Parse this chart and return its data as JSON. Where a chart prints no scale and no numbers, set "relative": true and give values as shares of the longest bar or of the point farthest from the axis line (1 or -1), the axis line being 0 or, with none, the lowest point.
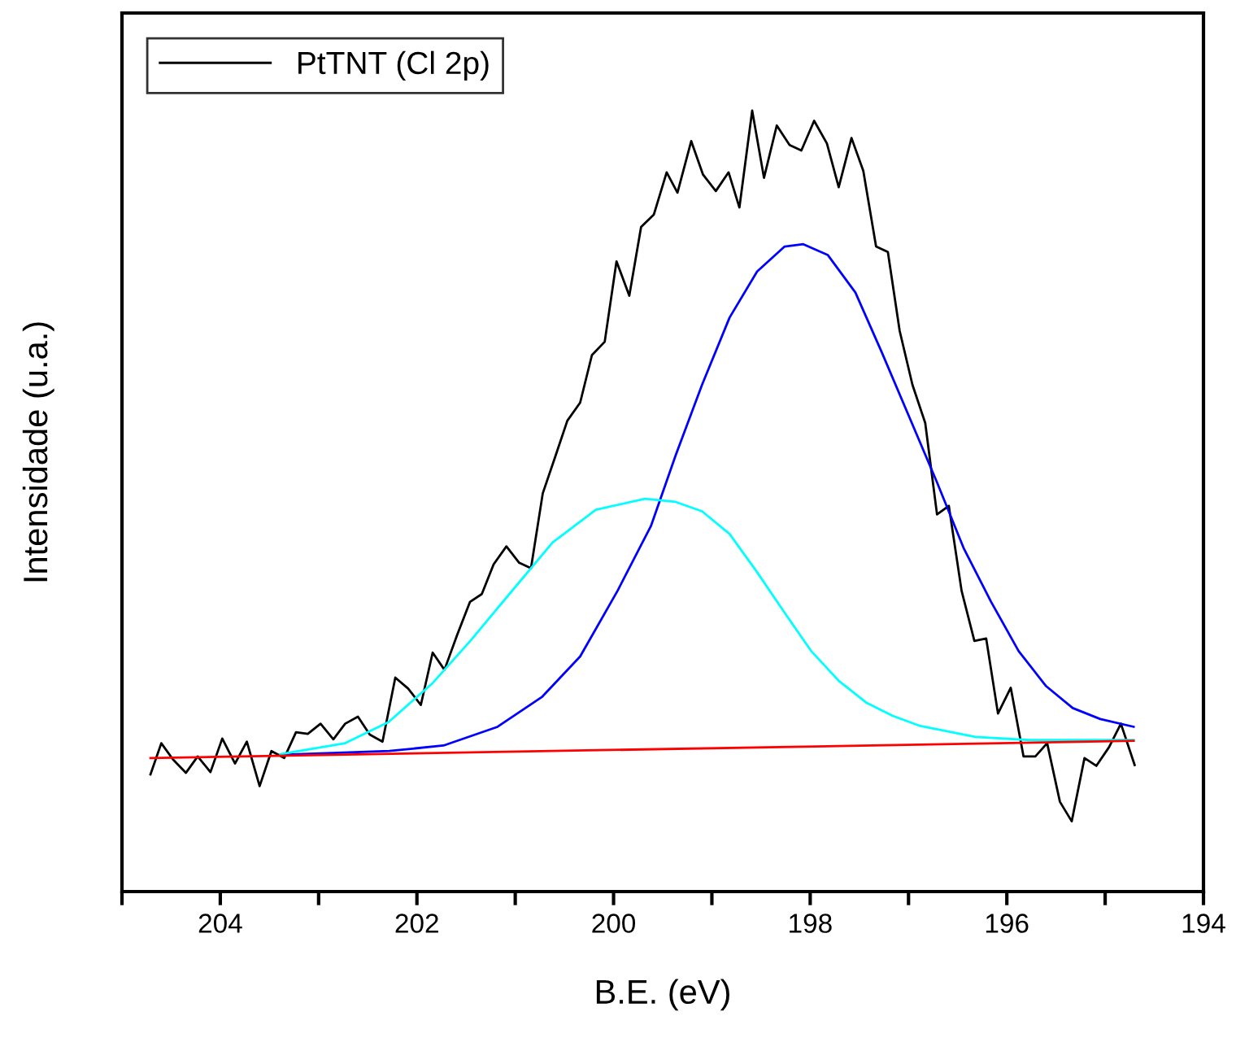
{
  "chart_data": {
    "type": "line",
    "relative": true,
    "xlabel": "B.E. (eV)",
    "ylabel": "Intensidade (u.a.)",
    "xlim": [
      205,
      194
    ],
    "xticks": [
      {
        "value": 205,
        "label": null
      },
      204,
      {
        "value": 203,
        "label": null
      },
      202,
      {
        "value": 201,
        "label": null
      },
      200,
      {
        "value": 199,
        "label": null
      },
      198,
      {
        "value": 197,
        "label": null
      },
      196,
      {
        "value": 195,
        "label": null
      },
      194
    ],
    "legend": "top left",
    "grid": false,
    "marker": "none",
    "line_style": "solid",
    "series": [
      {
        "name": "PtTNT (Cl 2p)",
        "color": "#000000",
        "x": [
          204.71,
          204.6,
          204.48,
          204.35,
          204.23,
          204.1,
          203.98,
          203.85,
          203.73,
          203.6,
          203.48,
          203.35,
          203.23,
          203.11,
          202.98,
          202.85,
          202.73,
          202.6,
          202.48,
          202.35,
          202.22,
          202.09,
          201.96,
          201.84,
          201.72,
          201.59,
          201.46,
          201.34,
          201.22,
          201.09,
          200.96,
          200.84,
          200.72,
          200.59,
          200.47,
          200.34,
          200.22,
          200.09,
          199.97,
          199.84,
          199.72,
          199.59,
          199.46,
          199.35,
          199.21,
          199.09,
          198.96,
          198.83,
          198.72,
          198.59,
          198.47,
          198.34,
          198.21,
          198.09,
          197.96,
          197.83,
          197.71,
          197.58,
          197.46,
          197.33,
          197.21,
          197.09,
          196.96,
          196.83,
          196.71,
          196.59,
          196.46,
          196.33,
          196.21,
          196.09,
          195.96,
          195.83,
          195.71,
          195.59,
          195.46,
          195.34,
          195.21,
          195.09,
          194.96,
          194.84,
          194.7
        ],
        "values": [
          0.15,
          0.19,
          0.169,
          0.152,
          0.173,
          0.153,
          0.196,
          0.164,
          0.192,
          0.135,
          0.18,
          0.171,
          0.204,
          0.202,
          0.215,
          0.195,
          0.215,
          0.224,
          0.201,
          0.192,
          0.274,
          0.26,
          0.239,
          0.306,
          0.284,
          0.329,
          0.371,
          0.381,
          0.419,
          0.442,
          0.421,
          0.414,
          0.51,
          0.558,
          0.603,
          0.626,
          0.687,
          0.704,
          0.807,
          0.763,
          0.851,
          0.867,
          0.921,
          0.895,
          0.961,
          0.918,
          0.897,
          0.921,
          0.876,
          1.0,
          0.914,
          0.981,
          0.956,
          0.949,
          0.987,
          0.958,
          0.902,
          0.965,
          0.923,
          0.826,
          0.819,
          0.718,
          0.649,
          0.6,
          0.483,
          0.494,
          0.385,
          0.321,
          0.324,
          0.228,
          0.261,
          0.173,
          0.173,
          0.19,
          0.115,
          0.09,
          0.171,
          0.161,
          0.185,
          0.215,
          0.162
        ]
      },
      {
        "color": "#0000ff",
        "x": [
          203.39,
          202.28,
          201.73,
          201.18,
          200.73,
          200.34,
          199.96,
          199.62,
          199.37,
          199.1,
          198.82,
          198.54,
          198.26,
          198.07,
          197.82,
          197.54,
          197.27,
          196.99,
          196.71,
          196.44,
          196.16,
          195.88,
          195.6,
          195.33,
          195.05,
          194.71
        ],
        "values": [
          0.175,
          0.18,
          0.187,
          0.211,
          0.249,
          0.301,
          0.385,
          0.468,
          0.558,
          0.649,
          0.735,
          0.794,
          0.826,
          0.829,
          0.815,
          0.767,
          0.69,
          0.607,
          0.524,
          0.44,
          0.371,
          0.308,
          0.263,
          0.235,
          0.221,
          0.211
        ]
      },
      {
        "color": "#00ffff",
        "x": [
          203.39,
          202.73,
          202.29,
          201.84,
          201.45,
          201.06,
          200.62,
          200.18,
          199.68,
          199.37,
          199.1,
          198.82,
          198.54,
          198.26,
          197.99,
          197.71,
          197.43,
          197.16,
          196.88,
          196.32,
          195.77,
          194.71
        ],
        "values": [
          0.176,
          0.19,
          0.217,
          0.267,
          0.322,
          0.381,
          0.447,
          0.489,
          0.503,
          0.499,
          0.487,
          0.458,
          0.409,
          0.357,
          0.308,
          0.27,
          0.242,
          0.225,
          0.212,
          0.198,
          0.194,
          0.194
        ]
      },
      {
        "color": "#ff0000",
        "x": [
          204.71,
          194.71
        ],
        "values": [
          0.171,
          0.193
        ]
      }
    ]
  }
}
